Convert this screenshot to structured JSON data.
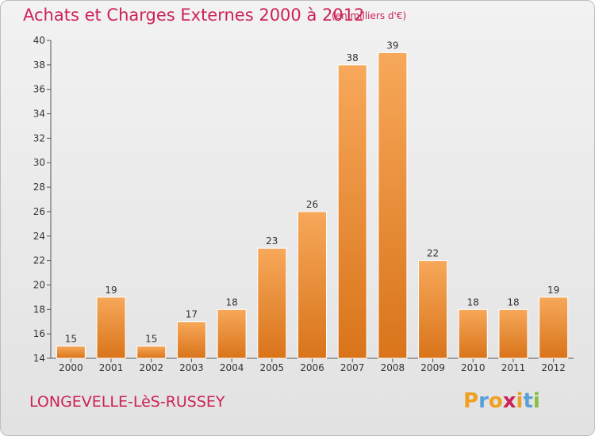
{
  "header": {
    "title": "Achats et Charges Externes 2000 à 2012",
    "unit": "(en milliers d'€)"
  },
  "footer": {
    "town": "LONGEVELLE-LèS-RUSSEY",
    "brand": "Proxiti",
    "brand_letters": [
      "P",
      "r",
      "o",
      "x",
      "i",
      "t",
      "i"
    ],
    "brand_colors": [
      "#f0a020",
      "#5aa0d8",
      "#f0a020",
      "#cc2255",
      "#f0a020",
      "#5aa0d8",
      "#88c040"
    ]
  },
  "colors": {
    "accent": "#cc2255",
    "bar_light": "#f7a85a",
    "bar_dark": "#d9741a"
  },
  "chart_data": {
    "type": "bar",
    "categories": [
      "2000",
      "2001",
      "2002",
      "2003",
      "2004",
      "2005",
      "2006",
      "2007",
      "2008",
      "2009",
      "2010",
      "2011",
      "2012"
    ],
    "values": [
      15,
      19,
      15,
      17,
      18,
      23,
      26,
      38,
      39,
      22,
      18,
      18,
      19
    ],
    "title": "Achats et Charges Externes 2000 à 2012",
    "subtitle": "(en milliers d'€)",
    "xlabel": "",
    "ylabel": "",
    "ylim": [
      14,
      40
    ],
    "yticks": [
      14,
      16,
      18,
      20,
      22,
      24,
      26,
      28,
      30,
      32,
      34,
      36,
      38,
      40
    ],
    "grid": false,
    "legend": "none",
    "data_labels": true
  }
}
